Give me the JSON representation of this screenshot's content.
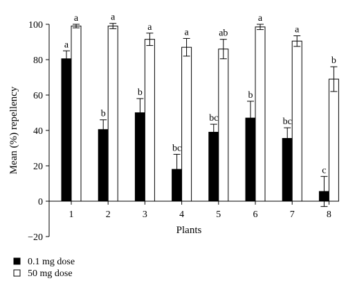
{
  "chart_data": {
    "type": "bar",
    "title": "",
    "xlabel": "Plants",
    "ylabel": "Mean (%) repellency",
    "ylim": [
      -20,
      100
    ],
    "yticks": [
      -20,
      0,
      20,
      40,
      60,
      80,
      100
    ],
    "categories": [
      "1",
      "2",
      "3",
      "4",
      "5",
      "6",
      "7",
      "8"
    ],
    "legend_position": "bottom-left",
    "grid": false,
    "series": [
      {
        "name": "0.1 mg dose",
        "color": "#000000",
        "fill": "solid",
        "values": [
          80.5,
          40.5,
          50,
          18,
          39,
          47,
          35.5,
          5.5
        ],
        "errors": [
          4.5,
          5.5,
          8,
          8.5,
          4.5,
          9.5,
          6,
          8.5
        ],
        "labels": [
          "a",
          "b",
          "b",
          "bc",
          "bc",
          "b",
          "bc",
          "c"
        ]
      },
      {
        "name": "50 mg dose",
        "color": "#ffffff",
        "fill": "hollow",
        "values": [
          99,
          99,
          91.5,
          87,
          86,
          98.5,
          90.5,
          69
        ],
        "errors": [
          1,
          1.5,
          3.5,
          5,
          5.5,
          1.5,
          3,
          7
        ],
        "labels": [
          "a",
          "a",
          "a",
          "a",
          "ab",
          "a",
          "a",
          "b"
        ]
      }
    ]
  }
}
